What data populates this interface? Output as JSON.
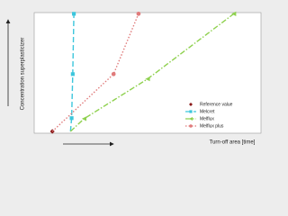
{
  "chart_data": {
    "type": "line",
    "x_label": "Turn-off area [time]",
    "y_label": "Concentration superplasticizer",
    "xlim": [
      0,
      10
    ],
    "ylim": [
      0,
      10
    ],
    "legend": "lower right",
    "series": [
      {
        "name": "Reference value",
        "color": "#8b1a1a",
        "marker": "diamond",
        "dash": "none",
        "x": [
          0.8
        ],
        "values": [
          0.15
        ]
      },
      {
        "name": "Melcret",
        "color": "#3cc6dc",
        "marker": "square",
        "dash": "6,3",
        "x": [
          1.6,
          1.65,
          1.7,
          1.75
        ],
        "values": [
          0.15,
          1.25,
          4.9,
          9.9
        ]
      },
      {
        "name": "Melflux",
        "color": "#8fd14f",
        "marker": "triangle",
        "dash": "6,2,1.5,2",
        "x": [
          1.6,
          2.2,
          5.0,
          8.8
        ],
        "values": [
          0.15,
          1.2,
          4.5,
          9.9
        ]
      },
      {
        "name": "Melflux plus",
        "color": "#e07b7b",
        "marker": "circle",
        "dash": "1.5,2",
        "x": [
          0.8,
          3.5,
          4.6
        ],
        "values": [
          0.15,
          4.9,
          9.9
        ]
      }
    ]
  }
}
